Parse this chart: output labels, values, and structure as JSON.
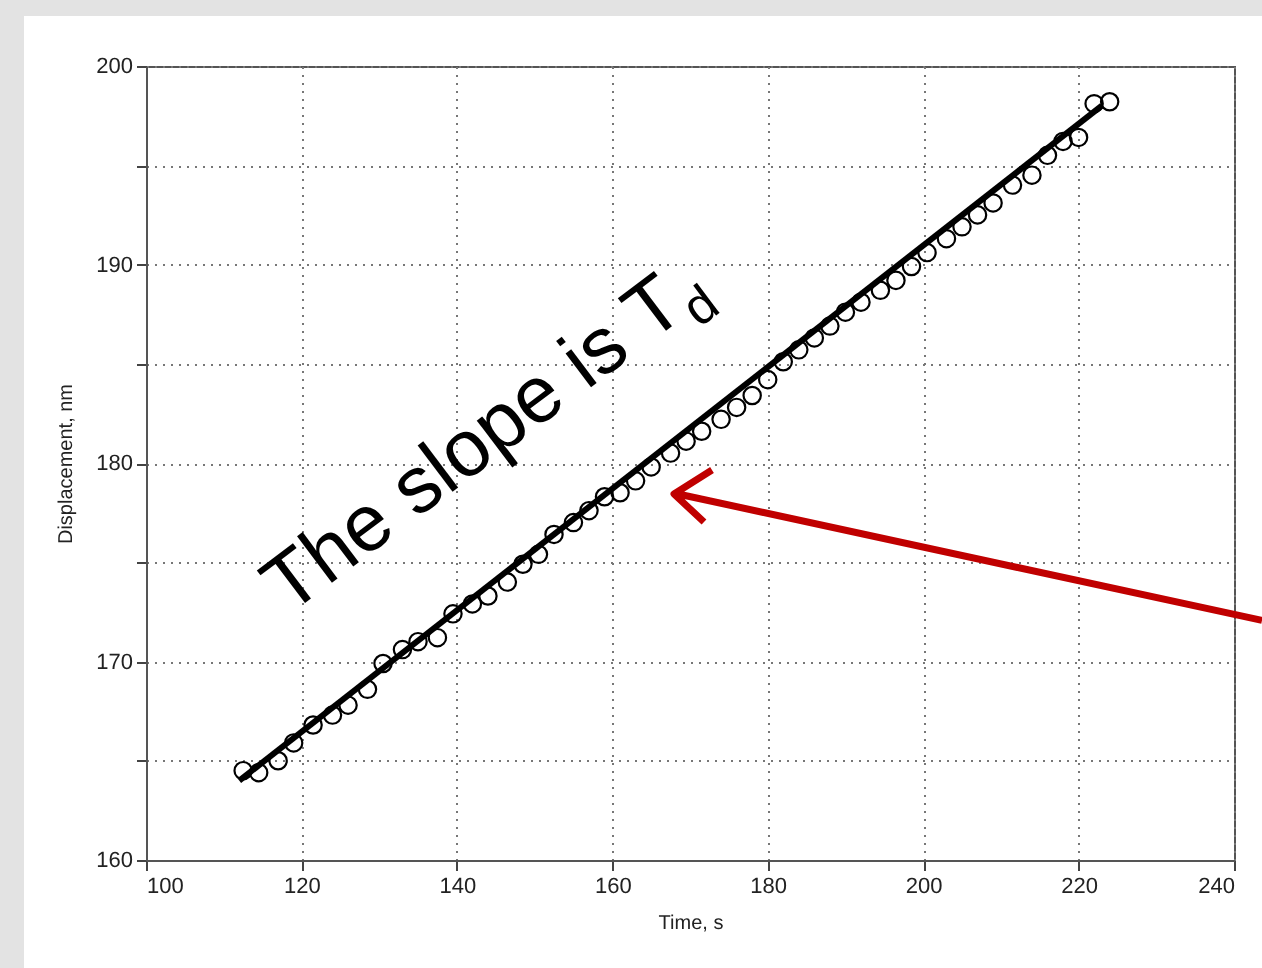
{
  "chart_data": {
    "type": "scatter",
    "xlabel": "Time, s",
    "ylabel": "Displacement, nm",
    "xlim": [
      100,
      240
    ],
    "xticks": [
      100,
      120,
      140,
      160,
      180,
      200,
      220,
      240
    ],
    "ylim": [
      160,
      200
    ],
    "yticks": [
      160,
      {
        "value": 165,
        "label": null
      },
      170,
      {
        "value": 175,
        "label": null
      },
      180,
      {
        "value": 185,
        "label": null
      },
      190,
      {
        "value": 195,
        "label": null
      },
      200
    ],
    "grid": true,
    "marker": "circle",
    "series": [
      {
        "color": "#000000",
        "x": [
          112.5,
          114.5,
          117,
          119,
          121.5,
          124,
          126,
          128.5,
          130.5,
          133,
          135,
          137.5,
          139.5,
          142,
          144,
          146.5,
          148.5,
          150.5,
          152.5,
          155,
          157,
          159,
          161,
          163,
          165,
          167.5,
          169.5,
          171.5,
          174,
          176,
          178,
          180,
          182,
          184,
          186,
          188,
          190,
          192,
          194.5,
          196.5,
          198.5,
          200.5,
          203,
          205,
          207,
          209,
          211.5,
          214,
          216,
          218,
          220,
          222,
          224
        ],
        "values": [
          164.5,
          164.4,
          165.0,
          165.9,
          166.8,
          167.3,
          167.8,
          168.6,
          169.9,
          170.6,
          171.0,
          171.2,
          172.4,
          172.9,
          173.3,
          174.0,
          174.9,
          175.4,
          176.4,
          177.0,
          177.6,
          178.3,
          178.5,
          179.1,
          179.8,
          180.5,
          181.1,
          181.6,
          182.2,
          182.8,
          183.4,
          184.2,
          185.1,
          185.7,
          186.3,
          186.9,
          187.6,
          188.1,
          188.7,
          189.2,
          189.9,
          190.6,
          191.3,
          191.9,
          192.5,
          193.1,
          194.0,
          194.5,
          195.5,
          196.2,
          196.4,
          198.1,
          198.2
        ]
      },
      {
        "type": "line",
        "marker": "none",
        "color": "#000000",
        "x": [
          112,
          223
        ],
        "values": [
          164,
          198
        ]
      }
    ],
    "annotations": [
      "The slope is T$_{d}$"
    ]
  }
}
